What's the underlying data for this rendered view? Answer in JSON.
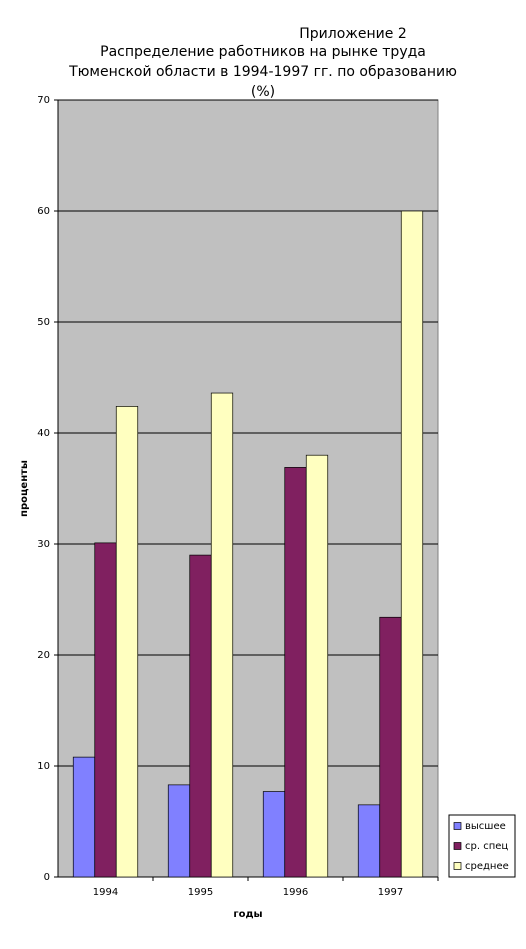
{
  "chart_data": {
    "type": "bar",
    "annotation": "Приложение 2",
    "title": "Распределение работников на рынке труда Тюменской области в 1994-1997 гг. по образованию (%)",
    "x_label": "годы",
    "y_label": "проценты",
    "categories": [
      "1994",
      "1995",
      "1996",
      "1997"
    ],
    "series": [
      {
        "name": "высшее",
        "color": "#8080ff",
        "values": [
          10.8,
          8.3,
          7.7,
          6.5
        ]
      },
      {
        "name": "ср. спец",
        "color": "#802060",
        "values": [
          30.1,
          29.0,
          36.9,
          23.4
        ]
      },
      {
        "name": "среднее",
        "color": "#ffffc0",
        "values": [
          42.4,
          43.6,
          38.0,
          60.0
        ]
      }
    ],
    "ylim": [
      0,
      70
    ],
    "yticks": [
      0,
      10,
      20,
      30,
      40,
      50,
      60,
      70
    ],
    "grid": true,
    "plot_background": "#c0c0c0",
    "legend": "right"
  }
}
